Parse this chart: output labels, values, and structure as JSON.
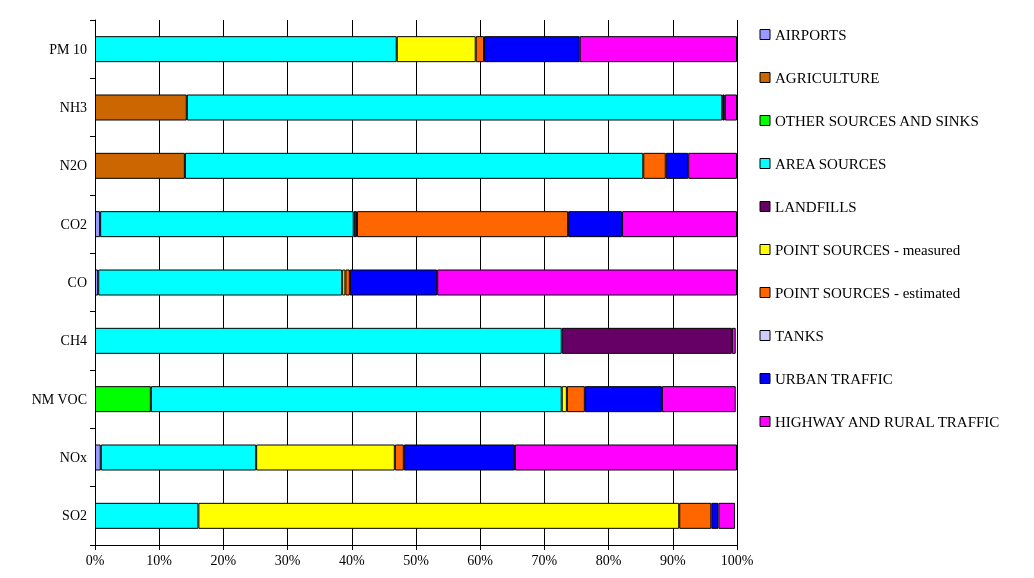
{
  "chart_data": {
    "type": "bar",
    "orientation": "horizontal",
    "stacked": true,
    "categories": [
      "PM 10",
      "NH3",
      "N2O",
      "CO2",
      "CO",
      "CH4",
      "NM VOC",
      "NOx",
      "SO2"
    ],
    "series": [
      {
        "name": "AIRPORTS",
        "color": "#9999ff",
        "values": [
          null,
          null,
          null,
          0.8,
          0.5,
          null,
          null,
          0.9,
          null
        ]
      },
      {
        "name": "AGRICULTURE",
        "color": "#cc6600",
        "values": [
          null,
          14.3,
          14.0,
          null,
          null,
          null,
          null,
          null,
          null
        ]
      },
      {
        "name": "OTHER SOURCES AND SINKS",
        "color": "#00ff00",
        "values": [
          null,
          null,
          null,
          null,
          null,
          null,
          8.7,
          null,
          null
        ]
      },
      {
        "name": "AREA SOURCES",
        "color": "#00ffff",
        "values": [
          47.0,
          83.4,
          71.4,
          39.5,
          38.0,
          72.7,
          64.0,
          24.2,
          16.1
        ]
      },
      {
        "name": "LANDFILLS",
        "color": "#660066",
        "values": [
          null,
          null,
          null,
          0.5,
          null,
          26.5,
          null,
          null,
          null
        ]
      },
      {
        "name": "POINT SOURCES - measured",
        "color": "#ffff00",
        "values": [
          12.3,
          null,
          null,
          null,
          0.5,
          null,
          0.8,
          21.6,
          74.9
        ]
      },
      {
        "name": "POINT SOURCES - estimated",
        "color": "#ff6600",
        "values": [
          1.3,
          null,
          3.5,
          32.9,
          0.7,
          null,
          2.8,
          1.4,
          5.0
        ]
      },
      {
        "name": "TANKS",
        "color": "#ccccff",
        "values": [
          null,
          null,
          null,
          null,
          null,
          null,
          null,
          null,
          null
        ]
      },
      {
        "name": "URBAN TRAFFIC",
        "color": "#0000ff",
        "values": [
          14.9,
          0.4,
          3.5,
          8.4,
          13.6,
          null,
          12.0,
          17.3,
          1.1
        ]
      },
      {
        "name": "HIGHWAY AND RURAL TRAFFIC",
        "color": "#ff00ff",
        "values": [
          24.5,
          1.9,
          7.6,
          17.9,
          46.7,
          0.6,
          11.5,
          34.6,
          2.6
        ]
      }
    ],
    "xlim": [
      0,
      100
    ],
    "xticks": [
      {
        "value": 0,
        "label": "0%"
      },
      {
        "value": 10,
        "label": "10%"
      },
      {
        "value": 20,
        "label": "20%"
      },
      {
        "value": 30,
        "label": "30%"
      },
      {
        "value": 40,
        "label": "40%"
      },
      {
        "value": 50,
        "label": "50%"
      },
      {
        "value": 60,
        "label": "60%"
      },
      {
        "value": 70,
        "label": "70%"
      },
      {
        "value": 80,
        "label": "80%"
      },
      {
        "value": 90,
        "label": "90%"
      },
      {
        "value": 100,
        "label": "100%"
      }
    ],
    "grid": "x",
    "legend": "right"
  }
}
